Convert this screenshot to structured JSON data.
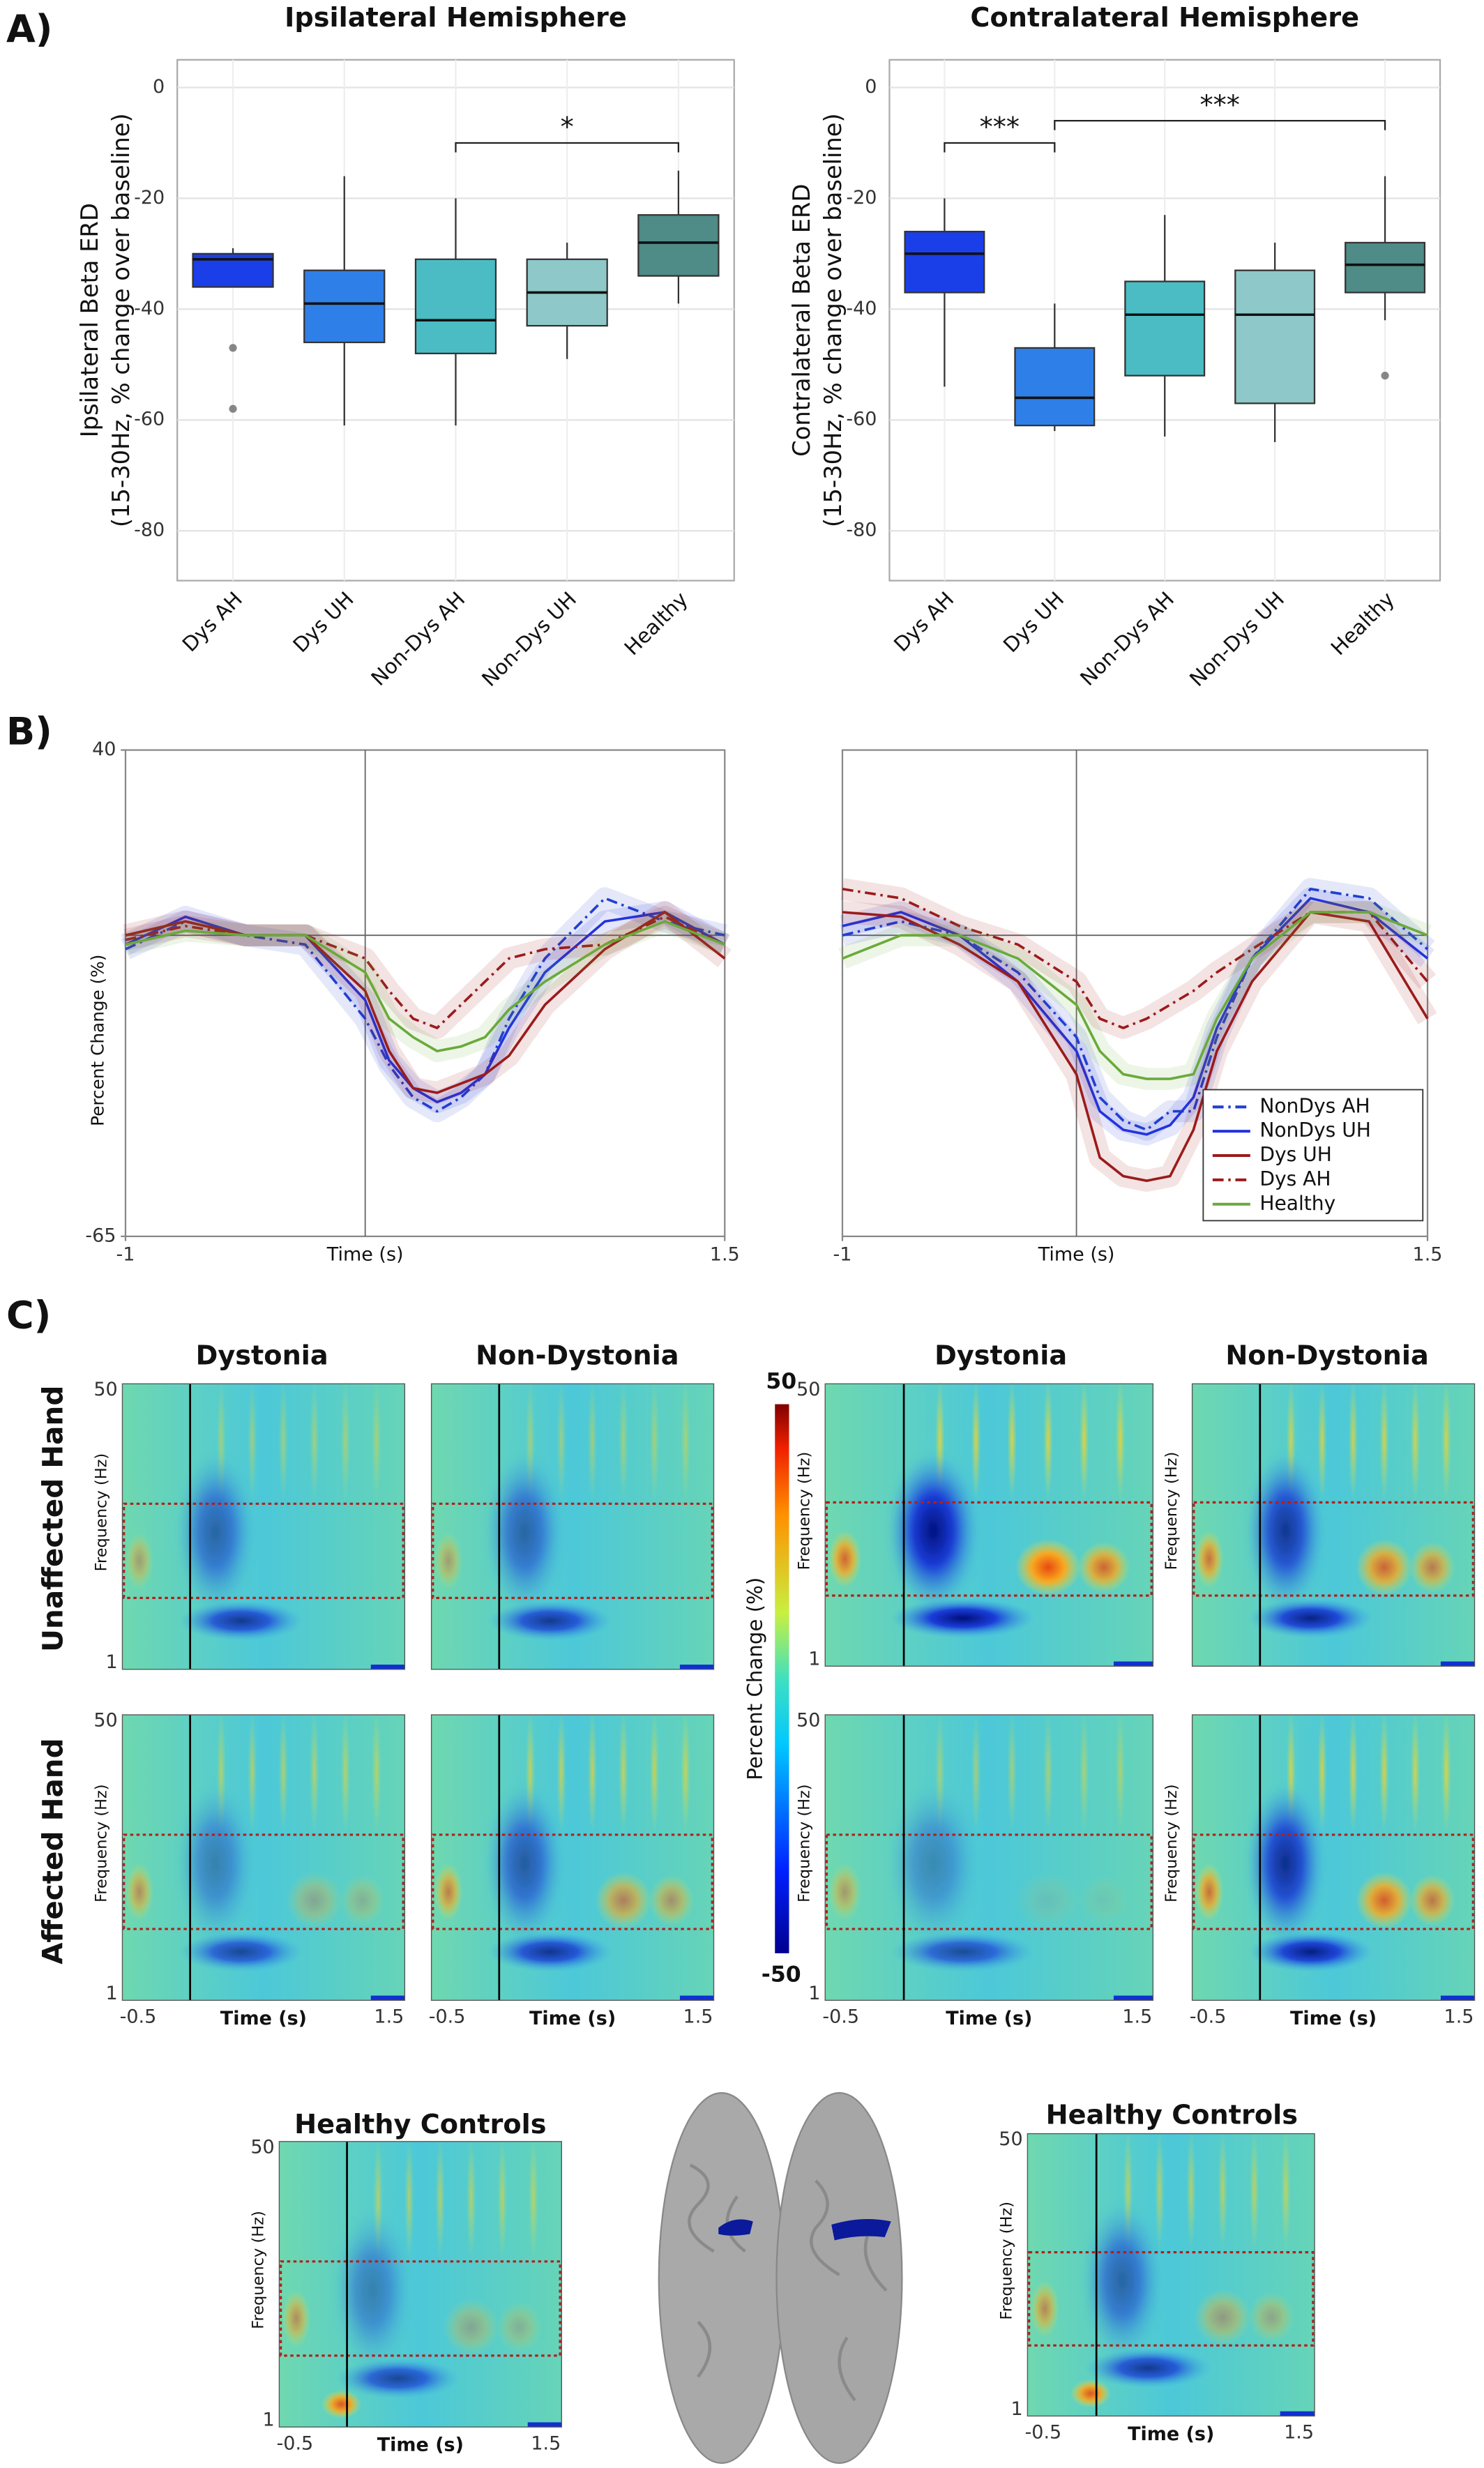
{
  "panel_labels": [
    "A)",
    "B)",
    "C)"
  ],
  "chart_data": [
    {
      "type": "box",
      "title": "Ipsilateral Hemisphere",
      "ylabel": [
        "Ipsilateral Beta ERD",
        "(15-30Hz, % change over baseline)"
      ],
      "categories": [
        "Dys AH",
        "Dys UH",
        "Non-Dys AH",
        "Non-Dys UH",
        "Healthy"
      ],
      "colors": [
        "#1a3fe8",
        "#2f7fe8",
        "#4bbcc4",
        "#8ec8c8",
        "#4f8b87"
      ],
      "q1": [
        -36,
        -46,
        -48,
        -43,
        -34
      ],
      "median": [
        -31,
        -39,
        -42,
        -37,
        -28
      ],
      "q3": [
        -30,
        -33,
        -31,
        -31,
        -23
      ],
      "whisker_low": [
        -36,
        -61,
        -61,
        -49,
        -39
      ],
      "whisker_high": [
        -29,
        -16,
        -20,
        -28,
        -15
      ],
      "outliers": [
        [
          -47,
          -58
        ],
        [],
        [],
        [],
        []
      ],
      "ylim": [
        -89,
        5
      ],
      "yticks": [
        0,
        -20,
        -40,
        -60,
        -80
      ],
      "grid": true,
      "significance": [
        {
          "from": 2,
          "to": 4,
          "y": -10,
          "label": "*"
        }
      ]
    },
    {
      "type": "box",
      "title": "Contralateral Hemisphere",
      "ylabel": [
        "Contralateral Beta ERD",
        "(15-30Hz, % change over baseline)"
      ],
      "categories": [
        "Dys AH",
        "Dys UH",
        "Non-Dys AH",
        "Non-Dys UH",
        "Healthy"
      ],
      "colors": [
        "#1a3fe8",
        "#2f7fe8",
        "#4bbcc4",
        "#8ec8c8",
        "#4f8b87"
      ],
      "q1": [
        -37,
        -61,
        -52,
        -57,
        -37
      ],
      "median": [
        -30,
        -56,
        -41,
        -41,
        -32
      ],
      "q3": [
        -26,
        -47,
        -35,
        -33,
        -28
      ],
      "whisker_low": [
        -54,
        -62,
        -63,
        -64,
        -42
      ],
      "whisker_high": [
        -20,
        -39,
        -23,
        -28,
        -16
      ],
      "outliers": [
        [],
        [],
        [],
        [],
        [
          -52
        ]
      ],
      "ylim": [
        -89,
        5
      ],
      "yticks": [
        0,
        -20,
        -40,
        -60,
        -80
      ],
      "grid": true,
      "significance": [
        {
          "from": 0,
          "to": 1,
          "y": -10,
          "label": "***"
        },
        {
          "from": 1,
          "to": 4,
          "y": -6,
          "label": "***"
        }
      ]
    },
    {
      "type": "line",
      "xlabel": "Time (s)",
      "ylabel": "Percent Change (%)",
      "x": [
        -1,
        -0.75,
        -0.5,
        -0.25,
        0,
        0.1,
        0.2,
        0.3,
        0.4,
        0.5,
        0.6,
        0.75,
        1,
        1.25,
        1.5
      ],
      "series": [
        {
          "color": "#2040d0",
          "dash": "dashdot",
          "values": [
            -3,
            3,
            0,
            -2,
            -18,
            -28,
            -35,
            -38,
            -35,
            -30,
            -18,
            -5,
            8,
            3,
            0
          ]
        },
        {
          "color": "#2233dd",
          "dash": "solid",
          "values": [
            -2,
            4,
            0,
            0,
            -14,
            -27,
            -33,
            -36,
            -34,
            -30,
            -20,
            -8,
            3,
            5,
            -2
          ]
        },
        {
          "color": "#9b1b1b",
          "dash": "solid",
          "values": [
            0,
            3,
            0,
            0,
            -12,
            -25,
            -33,
            -34,
            -32,
            -30,
            -26,
            -15,
            -3,
            5,
            -5
          ]
        },
        {
          "color": "#9b1b1b",
          "dash": "dashdot",
          "values": [
            -1,
            2,
            0,
            0,
            -5,
            -12,
            -18,
            -20,
            -15,
            -10,
            -5,
            -3,
            -2,
            4,
            -2
          ]
        },
        {
          "color": "#6aaa3a",
          "dash": "solid",
          "values": [
            -2,
            1,
            0,
            0,
            -8,
            -18,
            -22,
            -25,
            -24,
            -22,
            -16,
            -10,
            -2,
            3,
            -2
          ]
        }
      ],
      "xlim": [
        -1,
        1.5
      ],
      "ylim": [
        -65,
        40
      ],
      "xticks": [
        -1,
        1.5
      ],
      "yticks": [
        40,
        -65
      ]
    },
    {
      "type": "line",
      "xlabel": "Time (s)",
      "x": [
        -1,
        -0.75,
        -0.5,
        -0.25,
        0,
        0.1,
        0.2,
        0.3,
        0.4,
        0.5,
        0.6,
        0.75,
        1,
        1.25,
        1.5
      ],
      "series": [
        {
          "name": "NonDys AH",
          "color": "#2040d0",
          "dash": "dashdot",
          "values": [
            0,
            3,
            0,
            -8,
            -22,
            -35,
            -40,
            -42,
            -38,
            -38,
            -22,
            -5,
            10,
            8,
            -3
          ]
        },
        {
          "name": "NonDys UH",
          "color": "#2233dd",
          "dash": "solid",
          "values": [
            2,
            5,
            0,
            -10,
            -25,
            -38,
            -42,
            -43,
            -41,
            -35,
            -20,
            -5,
            8,
            5,
            -5
          ]
        },
        {
          "name": "Dys UH",
          "color": "#9b1b1b",
          "dash": "solid",
          "values": [
            5,
            4,
            -2,
            -10,
            -30,
            -48,
            -52,
            -53,
            -52,
            -42,
            -25,
            -10,
            5,
            3,
            -18
          ]
        },
        {
          "name": "Dys AH",
          "color": "#9b1b1b",
          "dash": "dashdot",
          "values": [
            10,
            8,
            2,
            -2,
            -10,
            -18,
            -20,
            -18,
            -15,
            -12,
            -8,
            -3,
            5,
            5,
            -10
          ]
        },
        {
          "name": "Healthy",
          "color": "#6aaa3a",
          "dash": "solid",
          "values": [
            -5,
            0,
            0,
            -5,
            -15,
            -25,
            -30,
            -31,
            -31,
            -30,
            -18,
            -5,
            5,
            5,
            0
          ]
        }
      ],
      "xlim": [
        -1,
        1.5
      ],
      "ylim": [
        -65,
        40
      ],
      "xticks": [
        -1,
        1.5
      ],
      "legend": "lower right"
    }
  ],
  "spectrograms": {
    "column_titles": [
      "Dystonia",
      "Non-Dystonia",
      "Dystonia",
      "Non-Dystonia"
    ],
    "row_labels": [
      "Unaffected Hand",
      "Affected Hand"
    ],
    "healthy_titles": [
      "Healthy Controls",
      "Healthy Controls"
    ],
    "freq_label": "Frequency (Hz)",
    "time_label": "Time (s)",
    "freq_ticks": [
      50,
      1
    ],
    "time_ticks": [
      -0.5,
      1.5
    ],
    "colorbar": {
      "label": "Percent Change (%)",
      "lim": [
        -50,
        50
      ],
      "ticks": [
        50,
        -50
      ]
    }
  }
}
